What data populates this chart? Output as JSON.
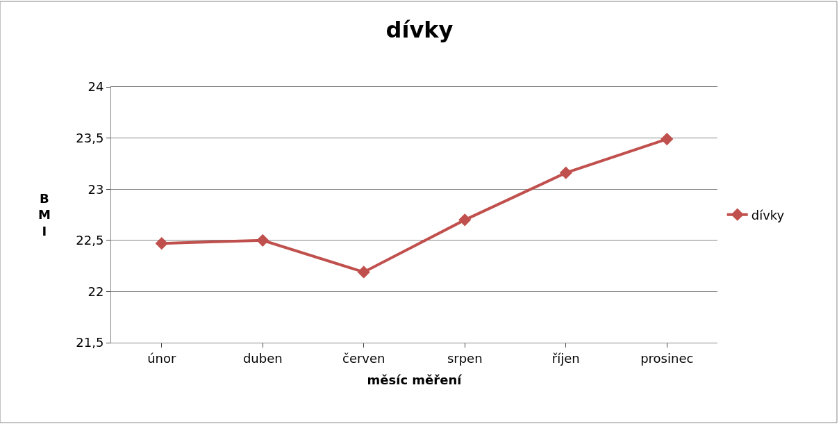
{
  "chart_data": {
    "type": "line",
    "title": "dívky",
    "xlabel": "měsíc měření",
    "ylabel": "BMI",
    "categories": [
      "únor",
      "duben",
      "červen",
      "srpen",
      "říjen",
      "prosinec"
    ],
    "series": [
      {
        "name": "dívky",
        "color": "#c0504d",
        "values": [
          22.47,
          22.5,
          22.19,
          22.7,
          23.16,
          23.49
        ]
      }
    ],
    "ylim": [
      21.5,
      24
    ],
    "yticks": [
      {
        "value": 21.5,
        "label": "21,5"
      },
      22,
      {
        "value": 22.5,
        "label": "22,5"
      },
      23,
      {
        "value": 23.5,
        "label": "23,5"
      },
      24
    ],
    "grid": "y",
    "legend": "right",
    "marker": "diamond",
    "line_style": "solid"
  }
}
